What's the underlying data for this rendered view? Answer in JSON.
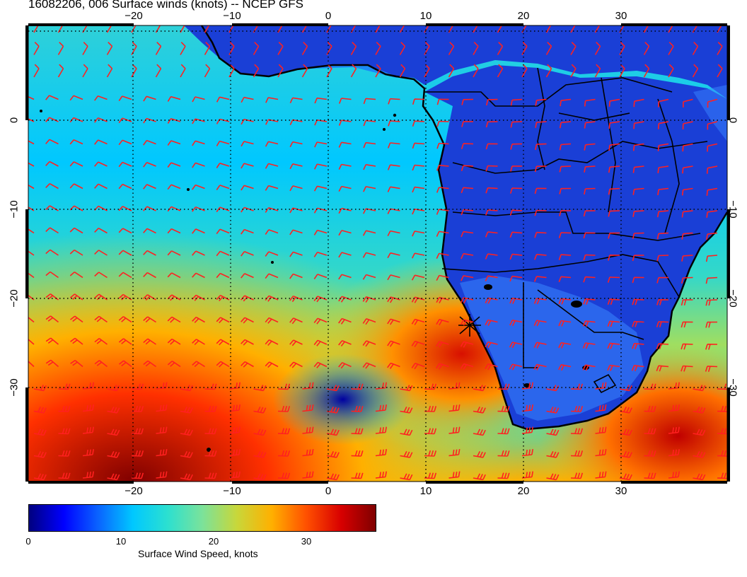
{
  "title": "16082206, 006 Surface winds (knots) -- NCEP GFS",
  "map_data": {
    "type": "wind-speed map",
    "region": "South Atlantic / Southern Africa",
    "lon_range": [
      -30,
      40
    ],
    "lat_range": [
      -40,
      10
    ],
    "lon_ticks": [
      "−20",
      "−10",
      "0",
      "10",
      "20",
      "30"
    ],
    "lat_ticks": [
      "0",
      "−10",
      "−20",
      "−30"
    ],
    "colors": {
      "ocean_calm": "#00008b",
      "land": "#1a3fd6",
      "wind_barbs": "#ff2020",
      "coastline": "#000000",
      "grid": "#000000"
    }
  },
  "colorbar": {
    "label": "Surface Wind Speed, knots",
    "ticks": [
      "0",
      "10",
      "20",
      "30"
    ],
    "range": [
      0,
      38
    ],
    "gradient": [
      "#00007f",
      "#0000ff",
      "#0a64ff",
      "#00c8ff",
      "#2ce0d0",
      "#7be29a",
      "#c8d73a",
      "#ffb000",
      "#ff5000",
      "#d80000",
      "#7f0000"
    ]
  }
}
